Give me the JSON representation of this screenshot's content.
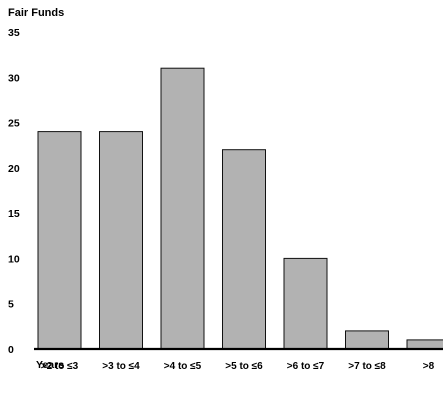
{
  "chart_data": {
    "type": "bar",
    "title": "Fair Funds",
    "xlabel": "Years",
    "ylabel": "",
    "categories": [
      ">2 to ≤3",
      ">3 to ≤4",
      ">4 to ≤5",
      ">5 to ≤6",
      ">6 to ≤7",
      ">7 to ≤8",
      ">8"
    ],
    "values": [
      24,
      24,
      31,
      22,
      10,
      2,
      1
    ],
    "ylim": [
      0,
      35
    ],
    "yticks": [
      "0",
      "5",
      "10",
      "15",
      "20",
      "25",
      "30",
      "35"
    ],
    "grid": false,
    "legend": "none",
    "colors": {
      "bar_fill": "#b2b2b2",
      "bar_stroke": "#111111",
      "axis": "#000000"
    }
  }
}
